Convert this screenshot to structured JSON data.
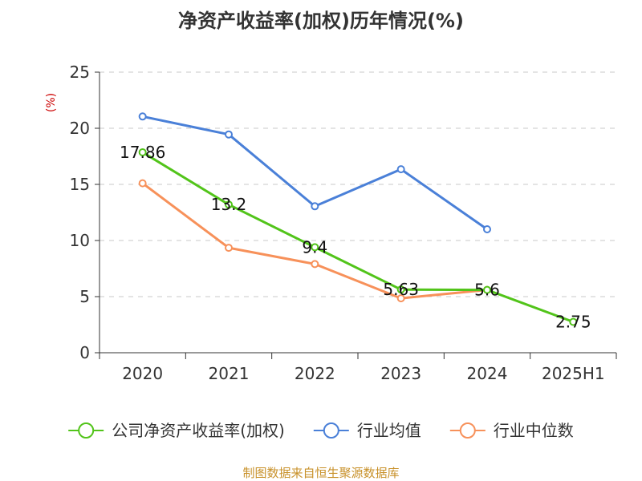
{
  "chart_data": {
    "type": "line",
    "title": "净资产收益率(加权)历年情况(%)",
    "ylabel": "(%)",
    "categories": [
      "2020",
      "2021",
      "2022",
      "2023",
      "2024",
      "2025H1"
    ],
    "ylim": [
      0,
      25
    ],
    "yticks": [
      0,
      5,
      10,
      15,
      20,
      25
    ],
    "grid": true,
    "legend_position": "bottom",
    "series": [
      {
        "name": "公司净资产收益率(加权)",
        "values": [
          17.86,
          13.2,
          9.4,
          5.63,
          5.6,
          2.75
        ],
        "labels": [
          "17.86",
          "13.2",
          "9.4",
          "5.63",
          "5.6",
          "2.75"
        ],
        "color": "#52c41a"
      },
      {
        "name": "行业均值",
        "values": [
          21.05,
          19.45,
          13.05,
          16.35,
          11.0,
          null
        ],
        "color": "#4a80d8"
      },
      {
        "name": "行业中位数",
        "values": [
          15.1,
          9.35,
          7.9,
          4.85,
          5.6,
          null
        ],
        "color": "#f7915a"
      }
    ]
  },
  "footer": "制图数据来自恒生聚源数据库"
}
